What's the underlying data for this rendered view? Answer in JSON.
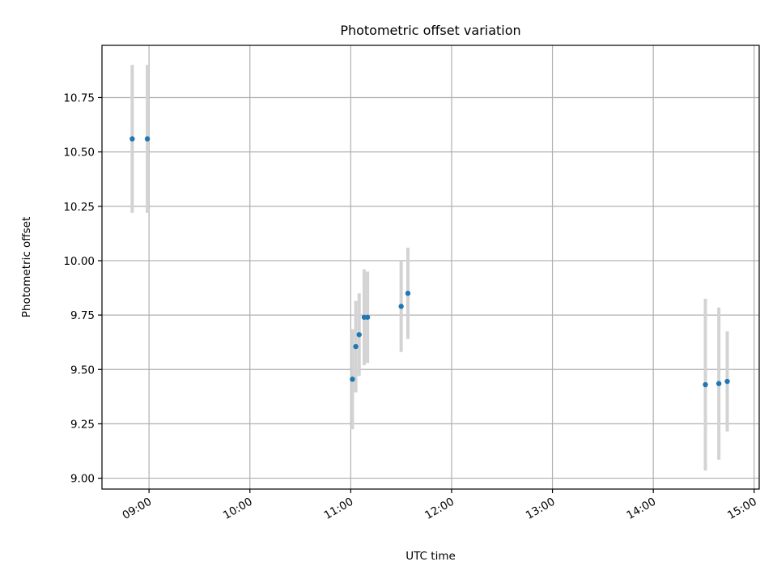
{
  "chart_data": {
    "type": "scatter",
    "title": "Photometric offset variation",
    "xlabel": "UTC time",
    "ylabel": "Photometric offset",
    "grid": true,
    "xlim": [
      "08:32",
      "15:03"
    ],
    "ylim": [
      8.95,
      10.99
    ],
    "xticks": [
      "09:00",
      "10:00",
      "11:00",
      "12:00",
      "13:00",
      "14:00",
      "15:00"
    ],
    "yticks": [
      "9.00",
      "9.25",
      "9.50",
      "9.75",
      "10.00",
      "10.25",
      "10.50",
      "10.75"
    ],
    "colors": {
      "points": "#1f77b4",
      "error_bars": "#d3d3d3",
      "grid": "#b0b0b0"
    },
    "series": [
      {
        "points": [
          {
            "x": "08:50",
            "y": 10.56,
            "err": 0.34
          },
          {
            "x": "08:59",
            "y": 10.56,
            "err": 0.34
          },
          {
            "x": "11:01",
            "y": 9.455,
            "err": 0.23
          },
          {
            "x": "11:03",
            "y": 9.605,
            "err": 0.21
          },
          {
            "x": "11:05",
            "y": 9.66,
            "err": 0.19
          },
          {
            "x": "11:08",
            "y": 9.74,
            "err": 0.22
          },
          {
            "x": "11:10",
            "y": 9.74,
            "err": 0.21
          },
          {
            "x": "11:30",
            "y": 9.79,
            "err": 0.21
          },
          {
            "x": "11:34",
            "y": 9.85,
            "err": 0.21
          },
          {
            "x": "14:31",
            "y": 9.43,
            "err": 0.395
          },
          {
            "x": "14:39",
            "y": 9.435,
            "err": 0.35
          },
          {
            "x": "14:44",
            "y": 9.445,
            "err": 0.23
          }
        ]
      }
    ]
  }
}
